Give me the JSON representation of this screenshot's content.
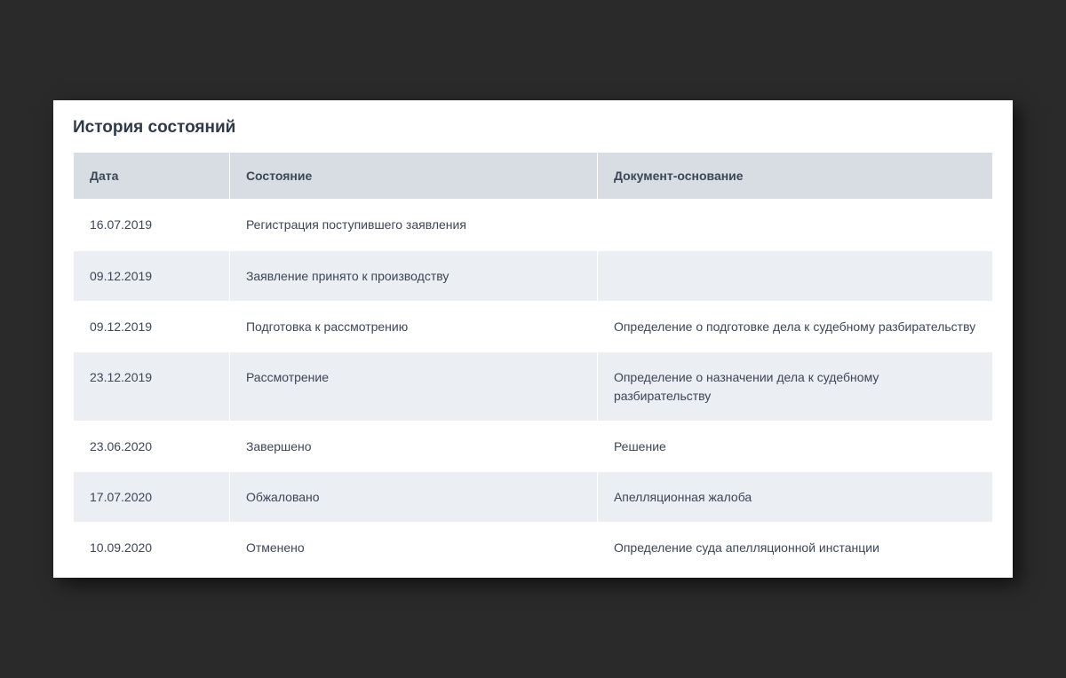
{
  "title": "История состояний",
  "table": {
    "type": "table",
    "header_bg": "#d7dde3",
    "row_odd_bg": "#ffffff",
    "row_even_bg": "#ebeef2",
    "text_color": "#3b4656",
    "columns": [
      {
        "key": "date",
        "label": "Дата",
        "width": "17%"
      },
      {
        "key": "status",
        "label": "Состояние",
        "width": "40%"
      },
      {
        "key": "document",
        "label": "Документ-основание",
        "width": "43%"
      }
    ],
    "rows": [
      {
        "date": "16.07.2019",
        "status": "Регистрация поступившего заявления",
        "document": ""
      },
      {
        "date": "09.12.2019",
        "status": "Заявление принято к производству",
        "document": ""
      },
      {
        "date": "09.12.2019",
        "status": "Подготовка к рассмотрению",
        "document": "Определение о подготовке дела к судебному разбирательству"
      },
      {
        "date": "23.12.2019",
        "status": "Рассмотрение",
        "document": "Определение о назначении дела к судебному разбирательству"
      },
      {
        "date": "23.06.2020",
        "status": "Завершено",
        "document": "Решение"
      },
      {
        "date": "17.07.2020",
        "status": "Обжаловано",
        "document": "Апелляционная жалоба"
      },
      {
        "date": "10.09.2020",
        "status": "Отменено",
        "document": "Определение суда апелляционной инстанции"
      }
    ]
  }
}
